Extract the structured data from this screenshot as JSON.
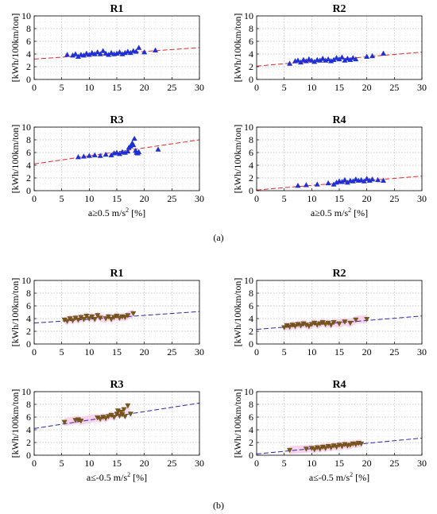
{
  "figure": {
    "panel_labels": [
      "(a)",
      "(b)"
    ],
    "colors": {
      "trend_a": "#e8262a",
      "trend_b": "#2a2aa8",
      "marker_a": "#1f2fd6",
      "marker_b": "#7a5a1a",
      "band_b": "#f7c6e4"
    }
  },
  "chart_data": [
    {
      "type": "scatter",
      "group": "a",
      "title": "R1",
      "ylabel": "[kWh/100km/ton]",
      "xlabel": "",
      "xlim": [
        0,
        30
      ],
      "ylim": [
        0,
        10
      ],
      "xticks": [
        "0",
        "5",
        "10",
        "15",
        "20",
        "25",
        "30"
      ],
      "yticks": [
        "0",
        "2",
        "4",
        "6",
        "8",
        "10"
      ],
      "grid": true,
      "marker": "triangle-up",
      "trend": {
        "x": [
          0,
          30
        ],
        "y": [
          3.2,
          5.0
        ]
      },
      "points": {
        "x": [
          6,
          7,
          7.5,
          8,
          8.5,
          9,
          9.5,
          10,
          10.5,
          11,
          11.5,
          12,
          12.5,
          13,
          13.5,
          14,
          14.5,
          15,
          15.5,
          16,
          16.5,
          17,
          17.5,
          18,
          18.5,
          19,
          20,
          22
        ],
        "y": [
          3.9,
          3.8,
          4.0,
          3.6,
          3.9,
          3.8,
          4.1,
          3.9,
          4.2,
          4.0,
          4.3,
          4.0,
          4.5,
          4.1,
          3.9,
          4.2,
          4.0,
          4.1,
          4.3,
          4.0,
          4.2,
          4.4,
          4.2,
          4.5,
          4.4,
          5.0,
          4.3,
          4.6
        ]
      }
    },
    {
      "type": "scatter",
      "group": "a",
      "title": "R2",
      "ylabel": "[kWh/100km/ton]",
      "xlabel": "",
      "xlim": [
        0,
        30
      ],
      "ylim": [
        0,
        10
      ],
      "xticks": [
        "0",
        "5",
        "10",
        "15",
        "20",
        "25",
        "30"
      ],
      "yticks": [
        "0",
        "2",
        "4",
        "6",
        "8",
        "10"
      ],
      "grid": true,
      "marker": "triangle-up",
      "trend": {
        "x": [
          0,
          30
        ],
        "y": [
          2.1,
          4.3
        ]
      },
      "points": {
        "x": [
          6,
          7,
          7.5,
          8,
          8.5,
          9,
          9.5,
          10,
          10.5,
          11,
          11.5,
          12,
          12.5,
          13,
          13.5,
          14,
          14.5,
          15,
          15.5,
          16,
          16.5,
          17,
          17.5,
          18,
          20,
          21,
          23
        ],
        "y": [
          2.5,
          2.9,
          3.0,
          2.7,
          3.1,
          2.9,
          3.2,
          3.0,
          2.8,
          3.1,
          3.0,
          3.3,
          3.0,
          3.2,
          2.9,
          3.1,
          3.4,
          3.2,
          3.5,
          3.0,
          3.3,
          3.1,
          3.4,
          3.2,
          3.6,
          3.7,
          4.1
        ]
      }
    },
    {
      "type": "scatter",
      "group": "a",
      "title": "R3",
      "ylabel": "[kWh/100km/ton]",
      "xlabel": "a≥0.5 m/s² [%]",
      "xlim": [
        0,
        30
      ],
      "ylim": [
        0,
        10
      ],
      "xticks": [
        "0",
        "5",
        "10",
        "15",
        "20",
        "25",
        "30"
      ],
      "yticks": [
        "0",
        "2",
        "4",
        "6",
        "8",
        "10"
      ],
      "grid": true,
      "marker": "triangle-up",
      "trend": {
        "x": [
          0,
          30
        ],
        "y": [
          4.2,
          8.0
        ]
      },
      "points": {
        "x": [
          8,
          9,
          10,
          11,
          12,
          13,
          14,
          14.5,
          15,
          15.5,
          16,
          16.5,
          17,
          17.2,
          17.5,
          17.8,
          18,
          18.2,
          18.4,
          18.6,
          18.8,
          19,
          22.5
        ],
        "y": [
          5.3,
          5.4,
          5.5,
          5.6,
          5.5,
          5.7,
          5.6,
          5.9,
          6.0,
          5.8,
          6.1,
          6.0,
          6.2,
          6.8,
          7.0,
          7.5,
          7.2,
          8.2,
          6.3,
          6.0,
          5.9,
          6.1,
          6.5
        ]
      }
    },
    {
      "type": "scatter",
      "group": "a",
      "title": "R4",
      "ylabel": "[kWh/100km/ton]",
      "xlabel": "a≥0.5 m/s² [%]",
      "xlim": [
        0,
        30
      ],
      "ylim": [
        0,
        10
      ],
      "xticks": [
        "0",
        "5",
        "10",
        "15",
        "20",
        "25",
        "30"
      ],
      "yticks": [
        "0",
        "2",
        "4",
        "6",
        "8",
        "10"
      ],
      "grid": true,
      "marker": "triangle-up",
      "trend": {
        "x": [
          0,
          30
        ],
        "y": [
          0.1,
          2.3
        ]
      },
      "points": {
        "x": [
          7.5,
          9,
          11,
          13,
          14,
          14.5,
          15,
          15.5,
          16,
          16.5,
          17,
          17.5,
          18,
          18.5,
          19,
          19.5,
          20,
          20.5,
          21,
          22,
          23
        ],
        "y": [
          0.8,
          0.9,
          1.0,
          1.2,
          1.0,
          1.3,
          1.5,
          1.4,
          1.7,
          1.3,
          1.6,
          1.5,
          1.8,
          1.6,
          1.7,
          1.5,
          1.9,
          1.6,
          1.8,
          1.7,
          1.6
        ]
      }
    },
    {
      "type": "scatter",
      "group": "b",
      "title": "R1",
      "ylabel": "[kWh/100km/ton]",
      "xlabel": "",
      "xlim": [
        0,
        30
      ],
      "ylim": [
        0,
        10
      ],
      "xticks": [
        "0",
        "5",
        "10",
        "15",
        "20",
        "25",
        "30"
      ],
      "yticks": [
        "0",
        "2",
        "4",
        "6",
        "8",
        "10"
      ],
      "grid": true,
      "marker": "triangle-down",
      "trend": {
        "x": [
          0,
          30
        ],
        "y": [
          3.3,
          5.1
        ]
      },
      "points": {
        "x": [
          5.5,
          6,
          6.5,
          7,
          7.5,
          8,
          8.5,
          9,
          9.5,
          10,
          10.5,
          11,
          11.5,
          12,
          13,
          13.5,
          14,
          14.5,
          15,
          15.5,
          16,
          16.5,
          17,
          18
        ],
        "y": [
          3.8,
          3.6,
          4.0,
          3.7,
          4.1,
          3.8,
          4.2,
          3.9,
          4.4,
          4.0,
          4.3,
          3.9,
          4.5,
          4.1,
          4.0,
          4.3,
          3.9,
          4.2,
          4.4,
          4.1,
          4.3,
          4.2,
          4.5,
          4.8
        ]
      }
    },
    {
      "type": "scatter",
      "group": "b",
      "title": "R2",
      "ylabel": "[kWh/100km/ton]",
      "xlabel": "",
      "xlim": [
        0,
        30
      ],
      "ylim": [
        0,
        10
      ],
      "xticks": [
        "0",
        "5",
        "10",
        "15",
        "20",
        "25",
        "30"
      ],
      "yticks": [
        "0",
        "2",
        "4",
        "6",
        "8",
        "10"
      ],
      "grid": true,
      "marker": "triangle-down",
      "trend": {
        "x": [
          0,
          30
        ],
        "y": [
          2.3,
          4.4
        ]
      },
      "points": {
        "x": [
          5,
          5.5,
          6,
          6.5,
          7,
          7.5,
          8,
          8.5,
          9,
          9.5,
          10,
          10.5,
          11,
          11.5,
          12,
          12.5,
          13,
          13.5,
          14,
          15,
          16,
          17,
          18,
          20
        ],
        "y": [
          2.6,
          2.9,
          2.7,
          3.0,
          2.8,
          3.1,
          2.9,
          3.2,
          3.0,
          2.8,
          3.1,
          3.3,
          3.0,
          3.2,
          3.4,
          3.1,
          3.3,
          3.0,
          3.4,
          3.2,
          3.5,
          3.3,
          3.8,
          3.9
        ]
      }
    },
    {
      "type": "scatter",
      "group": "b",
      "title": "R3",
      "ylabel": "[kWh/100km/ton]",
      "xlabel": "a≤-0.5 m/s² [%]",
      "xlim": [
        0,
        30
      ],
      "ylim": [
        0,
        10
      ],
      "xticks": [
        "0",
        "5",
        "10",
        "15",
        "20",
        "25",
        "30"
      ],
      "yticks": [
        "0",
        "2",
        "4",
        "6",
        "8",
        "10"
      ],
      "grid": true,
      "marker": "triangle-down",
      "trend": {
        "x": [
          0,
          30
        ],
        "y": [
          4.2,
          8.2
        ]
      },
      "points": {
        "x": [
          5.5,
          7.5,
          8,
          8.5,
          11.5,
          12,
          12.5,
          13,
          13.5,
          14,
          14.5,
          15,
          15.2,
          15.5,
          15.8,
          16,
          16.3,
          16.5,
          17,
          17.5
        ],
        "y": [
          5.2,
          5.5,
          5.6,
          5.4,
          5.9,
          5.7,
          6.0,
          5.8,
          6.1,
          6.3,
          6.0,
          6.5,
          7.0,
          6.2,
          6.8,
          6.4,
          7.2,
          6.1,
          7.8,
          6.5
        ]
      }
    },
    {
      "type": "scatter",
      "group": "b",
      "title": "R4",
      "ylabel": "[kWh/100km/ton]",
      "xlabel": "a≤-0.5 m/s² [%]",
      "xlim": [
        0,
        30
      ],
      "ylim": [
        0,
        10
      ],
      "xticks": [
        "0",
        "5",
        "10",
        "15",
        "20",
        "25",
        "30"
      ],
      "yticks": [
        "0",
        "2",
        "4",
        "6",
        "8",
        "10"
      ],
      "grid": true,
      "marker": "triangle-down",
      "trend": {
        "x": [
          0,
          30
        ],
        "y": [
          0.2,
          2.7
        ]
      },
      "points": {
        "x": [
          6,
          9,
          10,
          10.5,
          11,
          11.5,
          12,
          12.5,
          13,
          13.5,
          14,
          14.5,
          15,
          15.5,
          16,
          16.5,
          17,
          17.5,
          18,
          18.5,
          19
        ],
        "y": [
          0.8,
          1.0,
          1.1,
          0.9,
          1.2,
          1.0,
          1.3,
          1.1,
          1.4,
          1.2,
          1.5,
          1.3,
          1.6,
          1.4,
          1.7,
          1.5,
          1.6,
          1.8,
          1.7,
          1.9,
          1.8
        ]
      }
    }
  ]
}
